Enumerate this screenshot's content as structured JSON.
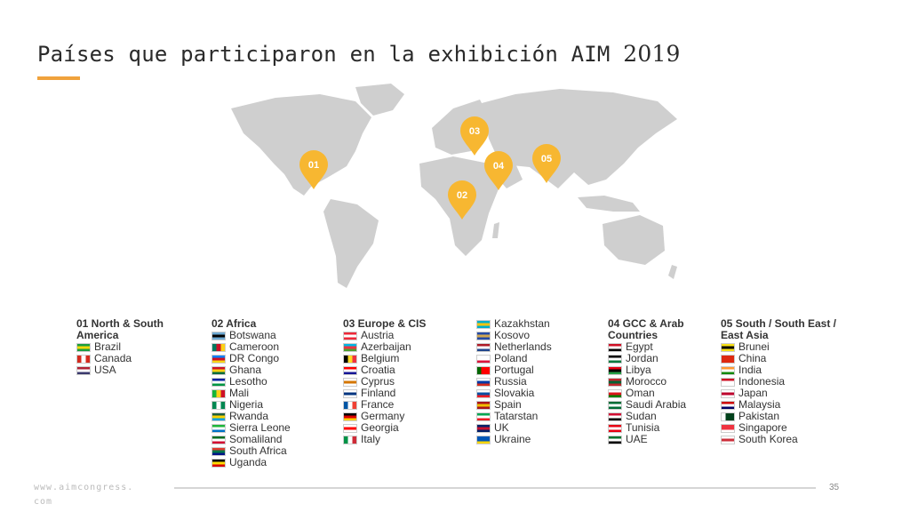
{
  "title": {
    "text": "Países que participaron en la exhibición AIM",
    "year": "2019"
  },
  "colors": {
    "accent": "#f0a23c",
    "pin": "#f7b731",
    "land": "#cfcfcf"
  },
  "pins": [
    "01",
    "02",
    "03",
    "04",
    "05"
  ],
  "regions": [
    {
      "title": "01 North & South America",
      "countries": [
        {
          "name": "Brazil",
          "flag": [
            "#1b9e3e",
            "#f5d90a",
            "#1b9e3e"
          ]
        },
        {
          "name": "Canada",
          "flag": [
            "#d52b1e",
            "#ffffff",
            "#d52b1e"
          ],
          "dir": "v"
        },
        {
          "name": "USA",
          "flag": [
            "#b22234",
            "#ffffff",
            "#3c3b6e"
          ]
        }
      ]
    },
    {
      "title": "02 Africa",
      "countries": [
        {
          "name": "Botswana",
          "flag": [
            "#6da9d2",
            "#000000",
            "#6da9d2"
          ]
        },
        {
          "name": "Cameroon",
          "flag": [
            "#007a5e",
            "#ce1126",
            "#fcd116"
          ],
          "dir": "v"
        },
        {
          "name": "DR Congo",
          "flag": [
            "#007fff",
            "#ce1021",
            "#f7d618"
          ]
        },
        {
          "name": "Ghana",
          "flag": [
            "#ce1126",
            "#fcd116",
            "#006b3f"
          ]
        },
        {
          "name": "Lesotho",
          "flag": [
            "#00209f",
            "#ffffff",
            "#009543"
          ]
        },
        {
          "name": "Mali",
          "flag": [
            "#14b53a",
            "#fcd116",
            "#ce1126"
          ],
          "dir": "v"
        },
        {
          "name": "Nigeria",
          "flag": [
            "#008751",
            "#ffffff",
            "#008751"
          ],
          "dir": "v"
        },
        {
          "name": "Rwanda",
          "flag": [
            "#20603d",
            "#fad201",
            "#00a1de"
          ]
        },
        {
          "name": "Sierra Leone",
          "flag": [
            "#1eb53a",
            "#ffffff",
            "#0072c6"
          ]
        },
        {
          "name": "Somaliland",
          "flag": [
            "#006d21",
            "#ffffff",
            "#d21034"
          ]
        },
        {
          "name": "South Africa",
          "flag": [
            "#e03c31",
            "#007749",
            "#001489"
          ]
        },
        {
          "name": "Uganda",
          "flag": [
            "#000000",
            "#fcdc04",
            "#d90000"
          ]
        }
      ]
    },
    {
      "title": "03 Europe & CIS",
      "countries": [
        {
          "name": "Austria",
          "flag": [
            "#ed2939",
            "#ffffff",
            "#ed2939"
          ]
        },
        {
          "name": "Azerbaijan",
          "flag": [
            "#00b5e2",
            "#ef3340",
            "#509e2f"
          ]
        },
        {
          "name": "Belgium",
          "flag": [
            "#000000",
            "#fdda24",
            "#ef3340"
          ],
          "dir": "v"
        },
        {
          "name": "Croatia",
          "flag": [
            "#ff0000",
            "#ffffff",
            "#171796"
          ]
        },
        {
          "name": "Cyprus",
          "flag": [
            "#ffffff",
            "#d47600",
            "#ffffff"
          ]
        },
        {
          "name": "Finland",
          "flag": [
            "#ffffff",
            "#003580",
            "#ffffff"
          ]
        },
        {
          "name": "France",
          "flag": [
            "#0055a4",
            "#ffffff",
            "#ef4135"
          ],
          "dir": "v"
        },
        {
          "name": "Germany",
          "flag": [
            "#000000",
            "#dd0000",
            "#ffce00"
          ]
        },
        {
          "name": "Georgia",
          "flag": [
            "#ffffff",
            "#ff0000",
            "#ffffff"
          ]
        },
        {
          "name": "Italy",
          "flag": [
            "#009246",
            "#ffffff",
            "#ce2b37"
          ],
          "dir": "v"
        }
      ]
    },
    {
      "title": "",
      "countries": [
        {
          "name": "Kazakhstan",
          "flag": [
            "#00afca",
            "#fec50c",
            "#00afca"
          ]
        },
        {
          "name": "Kosovo",
          "flag": [
            "#244aa5",
            "#d0a650",
            "#244aa5"
          ]
        },
        {
          "name": "Netherlands",
          "flag": [
            "#ae1c28",
            "#ffffff",
            "#21468b"
          ]
        },
        {
          "name": "Poland",
          "flag": [
            "#ffffff",
            "#ffffff",
            "#dc143c"
          ]
        },
        {
          "name": "Portugal",
          "flag": [
            "#006600",
            "#ff0000",
            "#ff0000"
          ],
          "dir": "v"
        },
        {
          "name": "Russia",
          "flag": [
            "#ffffff",
            "#0039a6",
            "#d52b1e"
          ]
        },
        {
          "name": "Slovakia",
          "flag": [
            "#ffffff",
            "#0b4ea2",
            "#ee1c25"
          ]
        },
        {
          "name": "Spain",
          "flag": [
            "#aa151b",
            "#f1bf00",
            "#aa151b"
          ]
        },
        {
          "name": "Tatarstan",
          "flag": [
            "#00a651",
            "#ffffff",
            "#ed1c24"
          ]
        },
        {
          "name": "UK",
          "flag": [
            "#012169",
            "#c8102e",
            "#012169"
          ]
        },
        {
          "name": "Ukraine",
          "flag": [
            "#0057b7",
            "#0057b7",
            "#ffd700"
          ]
        }
      ]
    },
    {
      "title": "04 GCC & Arab Countries",
      "countries": [
        {
          "name": "Egypt",
          "flag": [
            "#ce1126",
            "#ffffff",
            "#000000"
          ]
        },
        {
          "name": "Jordan",
          "flag": [
            "#000000",
            "#ffffff",
            "#007a3d"
          ]
        },
        {
          "name": "Libya",
          "flag": [
            "#e70013",
            "#000000",
            "#239e46"
          ]
        },
        {
          "name": "Morocco",
          "flag": [
            "#c1272d",
            "#006233",
            "#c1272d"
          ]
        },
        {
          "name": "Oman",
          "flag": [
            "#ffffff",
            "#db161b",
            "#008000"
          ]
        },
        {
          "name": "Saudi Arabia",
          "flag": [
            "#006c35",
            "#ffffff",
            "#006c35"
          ]
        },
        {
          "name": "Sudan",
          "flag": [
            "#d21034",
            "#ffffff",
            "#000000"
          ]
        },
        {
          "name": "Tunisia",
          "flag": [
            "#e70013",
            "#ffffff",
            "#e70013"
          ]
        },
        {
          "name": "UAE",
          "flag": [
            "#00732f",
            "#ffffff",
            "#000000"
          ]
        }
      ]
    },
    {
      "title": "05 South / South East / East Asia",
      "countries": [
        {
          "name": "Brunei",
          "flag": [
            "#f7e017",
            "#000000",
            "#f7e017"
          ]
        },
        {
          "name": "China",
          "flag": [
            "#de2910",
            "#de2910",
            "#de2910"
          ]
        },
        {
          "name": "India",
          "flag": [
            "#ff9933",
            "#ffffff",
            "#138808"
          ]
        },
        {
          "name": "Indonesia",
          "flag": [
            "#ce1126",
            "#ffffff",
            "#ffffff"
          ]
        },
        {
          "name": "Japan",
          "flag": [
            "#ffffff",
            "#bc002d",
            "#ffffff"
          ]
        },
        {
          "name": "Malaysia",
          "flag": [
            "#cc0001",
            "#ffffff",
            "#010066"
          ]
        },
        {
          "name": "Pakistan",
          "flag": [
            "#ffffff",
            "#01411c",
            "#01411c"
          ],
          "dir": "v"
        },
        {
          "name": "Singapore",
          "flag": [
            "#ef3340",
            "#ef3340",
            "#ffffff"
          ]
        },
        {
          "name": "South Korea",
          "flag": [
            "#ffffff",
            "#cd2e3a",
            "#ffffff"
          ]
        }
      ]
    }
  ],
  "footer": {
    "url": "www.aimcongress.com",
    "page": "35"
  }
}
